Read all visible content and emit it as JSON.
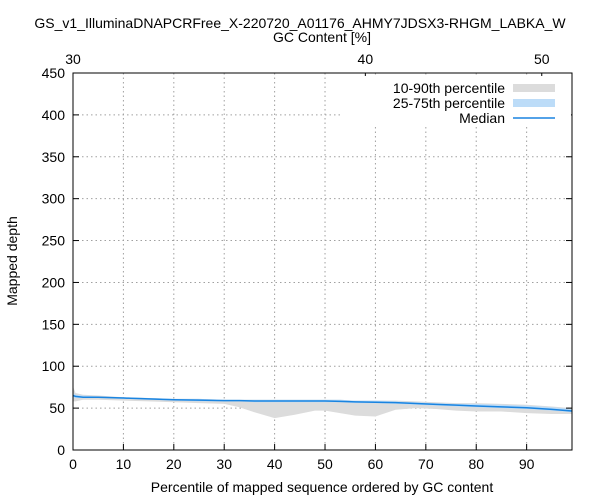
{
  "chart_data": {
    "type": "area",
    "title": "GS_v1_IlluminaDNAPCRFree_X-220720_A01176_AHMY7JDSX3-RHGM_LABKA_W",
    "xlabel": "Percentile of mapped sequence ordered by GC content",
    "ylabel": "Mapped depth",
    "x2label": "GC Content [%]",
    "xlim": [
      0,
      99
    ],
    "ylim": [
      0,
      450
    ],
    "xticks": [
      0,
      10,
      20,
      30,
      40,
      50,
      60,
      70,
      80,
      90
    ],
    "yticks": [
      0,
      50,
      100,
      150,
      200,
      250,
      300,
      350,
      400,
      450
    ],
    "x2ticks": [
      {
        "label": "30",
        "at": 0
      },
      {
        "label": "40",
        "at": 58
      },
      {
        "label": "50",
        "at": 93
      }
    ],
    "grid": true,
    "legend_position": "top-right",
    "colors": {
      "band_10_90": "#dcdcdc",
      "band_25_75": "#bcdcf8",
      "median": "#1a84e0"
    },
    "legend": [
      "10-90th percentile",
      "25-75th percentile",
      "Median"
    ],
    "x": [
      0,
      0.5,
      2,
      5,
      10,
      15,
      20,
      25,
      30,
      33,
      36,
      40,
      44,
      48,
      50,
      53,
      56,
      60,
      64,
      68,
      72,
      76,
      80,
      85,
      90,
      95,
      99
    ],
    "p10": [
      58,
      58,
      60,
      60,
      59,
      58,
      57,
      56,
      55,
      51,
      45,
      38,
      42,
      47,
      47,
      44,
      41,
      40,
      48,
      50,
      49,
      47,
      46,
      46,
      44,
      43,
      43
    ],
    "p90": [
      76,
      68,
      66,
      65,
      63,
      62,
      61,
      61,
      60,
      60,
      60,
      60,
      60,
      60,
      60,
      60,
      59,
      59,
      59,
      58,
      57,
      56,
      56,
      55,
      54,
      52,
      50
    ],
    "p25": [
      63,
      62,
      62,
      62,
      61,
      60,
      59,
      58,
      58,
      58,
      57,
      57,
      57,
      57,
      57,
      57,
      56,
      56,
      55,
      54,
      53,
      52,
      51,
      50,
      49,
      47,
      45
    ],
    "p75": [
      68,
      66,
      65,
      64,
      63,
      62,
      61,
      61,
      60,
      60,
      60,
      60,
      60,
      60,
      60,
      60,
      59,
      59,
      58,
      57,
      56,
      55,
      55,
      54,
      53,
      51,
      49
    ],
    "median": [
      65,
      64,
      63,
      63,
      62,
      61,
      60,
      59.5,
      59,
      59,
      58.5,
      58.5,
      58.5,
      58.5,
      58.5,
      58,
      57.5,
      57,
      56.5,
      55.5,
      54.5,
      53.5,
      52.5,
      51.5,
      50.5,
      48.5,
      46.5
    ]
  }
}
